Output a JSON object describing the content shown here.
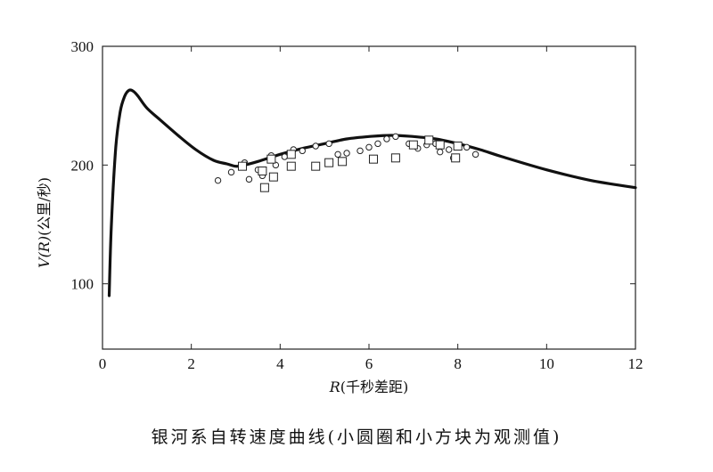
{
  "chart_data": {
    "type": "line",
    "title": "",
    "xlabel_prefix": "R",
    "xlabel_unit": "(千秒差距)",
    "ylabel_prefix": "V(R)",
    "ylabel_unit": "(公里/秒)",
    "xlim": [
      0,
      12
    ],
    "ylim": [
      45,
      300
    ],
    "x_ticks": [
      0,
      2,
      4,
      6,
      8,
      10,
      12
    ],
    "y_ticks": [
      100,
      200,
      300
    ],
    "grid": false,
    "series": [
      {
        "name": "rotation-curve",
        "style": "line",
        "x": [
          0.15,
          0.2,
          0.3,
          0.4,
          0.5,
          0.6,
          0.7,
          0.8,
          1.0,
          1.3,
          1.7,
          2.1,
          2.5,
          2.8,
          3.0,
          3.2,
          3.5,
          4.0,
          4.5,
          5.0,
          5.5,
          6.0,
          6.5,
          7.0,
          7.5,
          8.0,
          8.5,
          9.0,
          10.0,
          11.0,
          12.0
        ],
        "y": [
          90,
          150,
          215,
          245,
          258,
          263,
          262,
          258,
          248,
          238,
          225,
          213,
          204,
          201,
          199,
          200,
          203,
          209,
          214,
          218,
          222,
          224,
          225,
          224,
          222,
          218,
          213,
          207,
          196,
          187,
          181
        ]
      },
      {
        "name": "observed-circles",
        "style": "circle",
        "x": [
          2.6,
          2.9,
          3.2,
          3.3,
          3.5,
          3.6,
          3.8,
          3.9,
          4.1,
          4.3,
          4.5,
          4.8,
          5.1,
          5.3,
          5.5,
          5.8,
          6.0,
          6.2,
          6.4,
          6.6,
          6.9,
          7.1,
          7.3,
          7.5,
          7.6,
          7.8,
          7.9,
          8.2,
          8.4
        ],
        "y": [
          187,
          194,
          202,
          188,
          196,
          191,
          208,
          200,
          207,
          213,
          212,
          216,
          218,
          209,
          210,
          212,
          215,
          218,
          222,
          224,
          218,
          214,
          217,
          218,
          211,
          213,
          206,
          215,
          209
        ]
      },
      {
        "name": "observed-squares",
        "style": "square",
        "x": [
          3.15,
          3.6,
          3.65,
          3.8,
          3.85,
          4.25,
          4.25,
          4.8,
          5.1,
          5.4,
          6.1,
          6.6,
          7.0,
          7.35,
          7.6,
          8.0,
          7.95
        ],
        "y": [
          199,
          195,
          181,
          205,
          190,
          209,
          199,
          199,
          202,
          203,
          205,
          206,
          217,
          221,
          217,
          216,
          206
        ]
      }
    ]
  },
  "caption": "银河系自转速度曲线(小圆圈和小方块为观测值)"
}
